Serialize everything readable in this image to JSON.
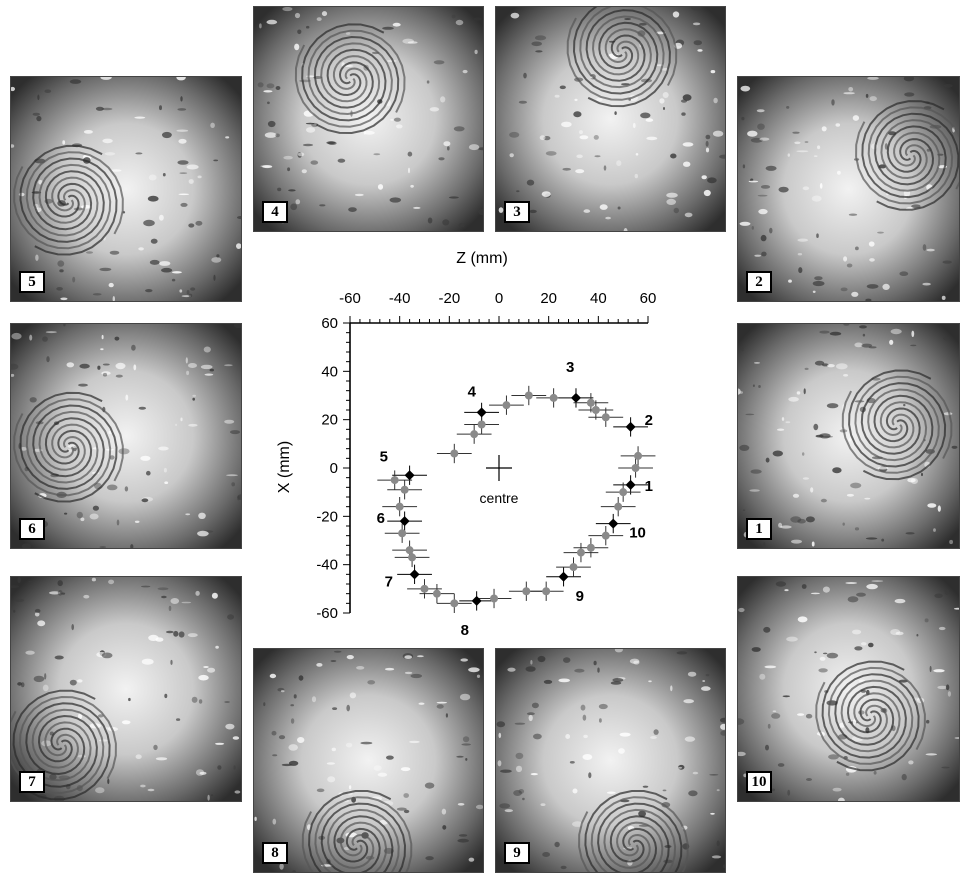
{
  "panels": [
    {
      "label": "1",
      "vortex": "right"
    },
    {
      "label": "2",
      "vortex": "upper-right"
    },
    {
      "label": "3",
      "vortex": "top-right"
    },
    {
      "label": "4",
      "vortex": "top-left"
    },
    {
      "label": "5",
      "vortex": "left"
    },
    {
      "label": "6",
      "vortex": "left"
    },
    {
      "label": "7",
      "vortex": "lower-left"
    },
    {
      "label": "8",
      "vortex": "bottom"
    },
    {
      "label": "9",
      "vortex": "bottom-right"
    },
    {
      "label": "10",
      "vortex": "lower-right"
    }
  ],
  "chart_data": {
    "type": "scatter",
    "xlabel": "Z (mm)",
    "ylabel": "X (mm)",
    "xlim": [
      -60,
      60
    ],
    "ylim": [
      -60,
      60
    ],
    "xticks": [
      "-60",
      "-40",
      "-20",
      "0",
      "20",
      "40",
      "60"
    ],
    "yticks": [
      "60",
      "40",
      "20",
      "0",
      "-20",
      "-40",
      "-60"
    ],
    "x_axis_position": "top",
    "grid": false,
    "centre_label": "centre",
    "centre": {
      "x": 0,
      "y": 0
    },
    "series": [
      {
        "marker": "black-diamond",
        "color": "#000000",
        "points": [
          {
            "x": 53,
            "y": -7,
            "label": "1"
          },
          {
            "x": 53,
            "y": 17,
            "label": "2"
          },
          {
            "x": 31,
            "y": 29,
            "label": "3"
          },
          {
            "x": -7,
            "y": 23,
            "label": "4"
          },
          {
            "x": -36,
            "y": -3,
            "label": "5"
          },
          {
            "x": -38,
            "y": -22,
            "label": "6"
          },
          {
            "x": -34,
            "y": -44,
            "label": "7"
          },
          {
            "x": -9,
            "y": -55,
            "label": "8"
          },
          {
            "x": 26,
            "y": -45,
            "label": "9"
          },
          {
            "x": 46,
            "y": -23,
            "label": "10"
          }
        ]
      },
      {
        "marker": "grey-circle",
        "color": "#8a8a8a",
        "points": [
          {
            "x": 56,
            "y": 5
          },
          {
            "x": 55,
            "y": 0
          },
          {
            "x": 50,
            "y": -10
          },
          {
            "x": 48,
            "y": -16
          },
          {
            "x": 43,
            "y": -28
          },
          {
            "x": 37,
            "y": -33
          },
          {
            "x": 33,
            "y": -35
          },
          {
            "x": 30,
            "y": -41
          },
          {
            "x": 19,
            "y": -51
          },
          {
            "x": 11,
            "y": -51
          },
          {
            "x": -2,
            "y": -54
          },
          {
            "x": -18,
            "y": -56
          },
          {
            "x": -25,
            "y": -52
          },
          {
            "x": -30,
            "y": -50
          },
          {
            "x": -35,
            "y": -37
          },
          {
            "x": -36,
            "y": -34
          },
          {
            "x": -39,
            "y": -27
          },
          {
            "x": -40,
            "y": -16
          },
          {
            "x": -38,
            "y": -9
          },
          {
            "x": -42,
            "y": -5
          },
          {
            "x": -18,
            "y": 6
          },
          {
            "x": -10,
            "y": 14
          },
          {
            "x": -7,
            "y": 18
          },
          {
            "x": 3,
            "y": 26
          },
          {
            "x": 12,
            "y": 30
          },
          {
            "x": 22,
            "y": 29
          },
          {
            "x": 37,
            "y": 27
          },
          {
            "x": 43,
            "y": 21
          },
          {
            "x": 39,
            "y": 24
          }
        ]
      }
    ]
  }
}
